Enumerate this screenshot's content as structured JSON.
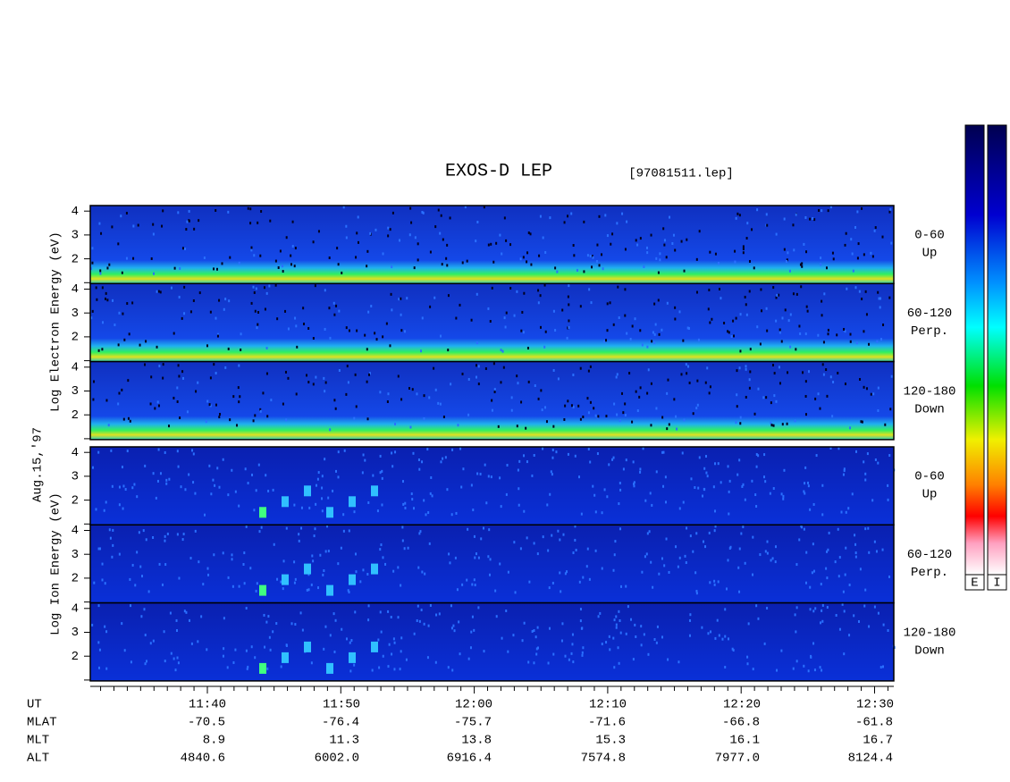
{
  "title": "EXOS-D LEP",
  "file": "[97081511.lep]",
  "date": "Aug.15,'97",
  "electron_axis": "Log Electron Energy (eV)",
  "ion_axis": "Log Ion Energy (eV)",
  "panels": [
    {
      "label": "0-60",
      "sub": "Up"
    },
    {
      "label": "60-120",
      "sub": "Perp."
    },
    {
      "label": "120-180",
      "sub": "Down"
    }
  ],
  "yticks": [
    2,
    3,
    4
  ],
  "time_rows": [
    {
      "label": "UT",
      "values": [
        "11:40",
        "11:50",
        "12:00",
        "12:10",
        "12:20",
        "12:30"
      ]
    },
    {
      "label": "MLAT",
      "values": [
        "-70.5",
        "-76.4",
        "-75.7",
        "-71.6",
        "-66.8",
        "-61.8"
      ]
    },
    {
      "label": "MLT",
      "values": [
        "8.9",
        "11.3",
        "13.8",
        "15.3",
        "16.1",
        "16.7"
      ]
    },
    {
      "label": "ALT",
      "values": [
        "4840.6",
        "6002.0",
        "6916.4",
        "7574.8",
        "7977.0",
        "8124.4"
      ]
    }
  ],
  "colorbar": [
    "E",
    "I"
  ]
}
